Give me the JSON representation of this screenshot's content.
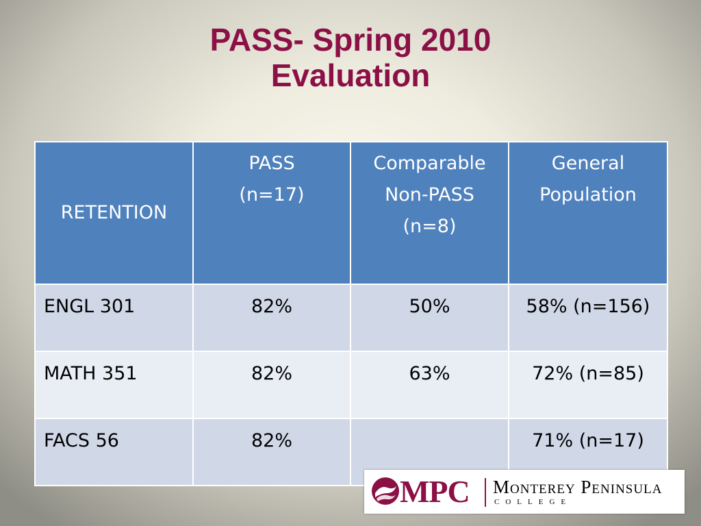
{
  "slide": {
    "title_line1": "PASS- Spring 2010",
    "title_line2": "Evaluation",
    "title_color": "#8b1046"
  },
  "table": {
    "header": {
      "col0": "RETENTION",
      "col1_line1": "PASS",
      "col1_line2": "(n=17)",
      "col2_line1": "Comparable",
      "col2_line2": "Non-PASS",
      "col2_line3": "(n=8)",
      "col3_line1": "General",
      "col3_line2": "Population"
    },
    "header_color": "#4f81bd",
    "row_colors": [
      "#d0d8e8",
      "#e9edf4"
    ],
    "rows": [
      [
        "ENGL 301",
        "82%",
        "50%",
        "58% (n=156)"
      ],
      [
        "MATH 351",
        "82%",
        "63%",
        "72% (n=85)"
      ],
      [
        "FACS 56",
        "82%",
        "",
        "71% (n=17)"
      ]
    ]
  },
  "logo": {
    "abbr": "MPC",
    "name": "Monterey Peninsula",
    "sub": "COLLEGE",
    "seal_icon": "college-seal-icon"
  }
}
